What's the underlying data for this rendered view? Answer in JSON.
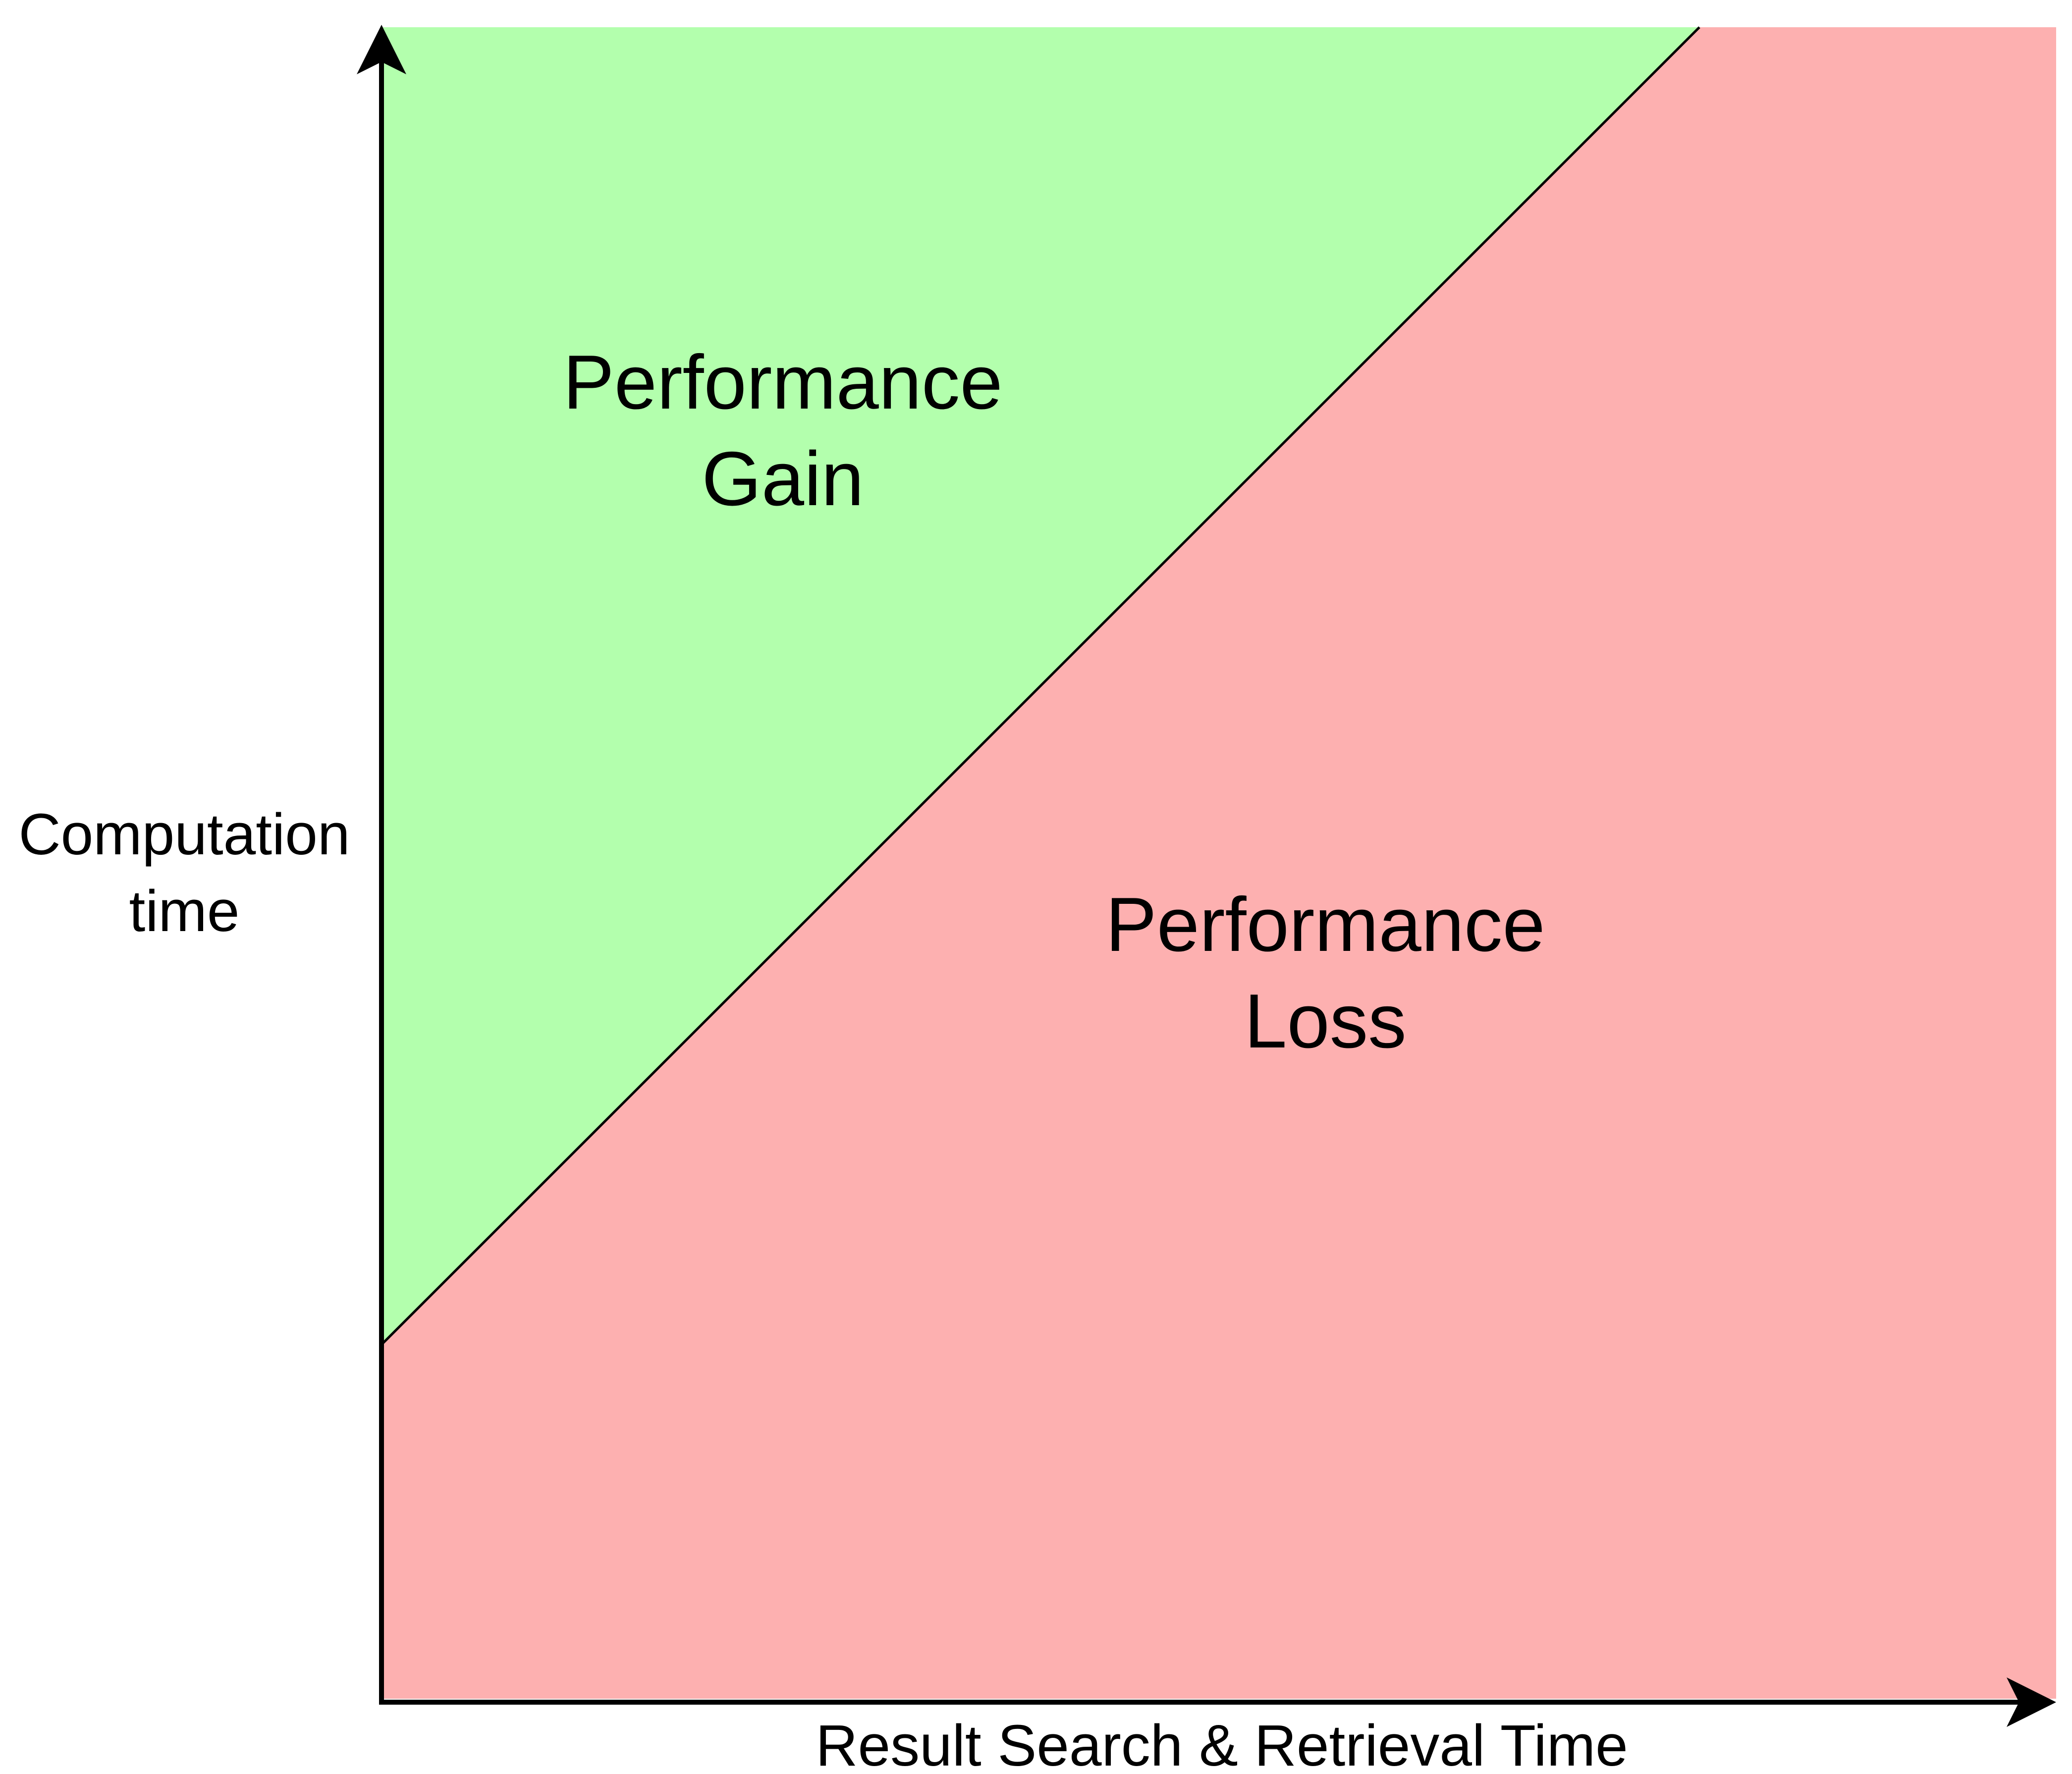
{
  "diagram": {
    "axes": {
      "y_label_line1": "Computation",
      "y_label_line2": "time",
      "x_label": "Result Search & Retrieval Time"
    },
    "regions": {
      "gain": {
        "line1": "Performance",
        "line2": "Gain",
        "color": "#b3ffad"
      },
      "loss": {
        "line1": "Performance",
        "line2": "Loss",
        "color": "#fdb0b0"
      }
    },
    "colors": {
      "axis": "#000000",
      "boundary_line": "#000000"
    }
  }
}
